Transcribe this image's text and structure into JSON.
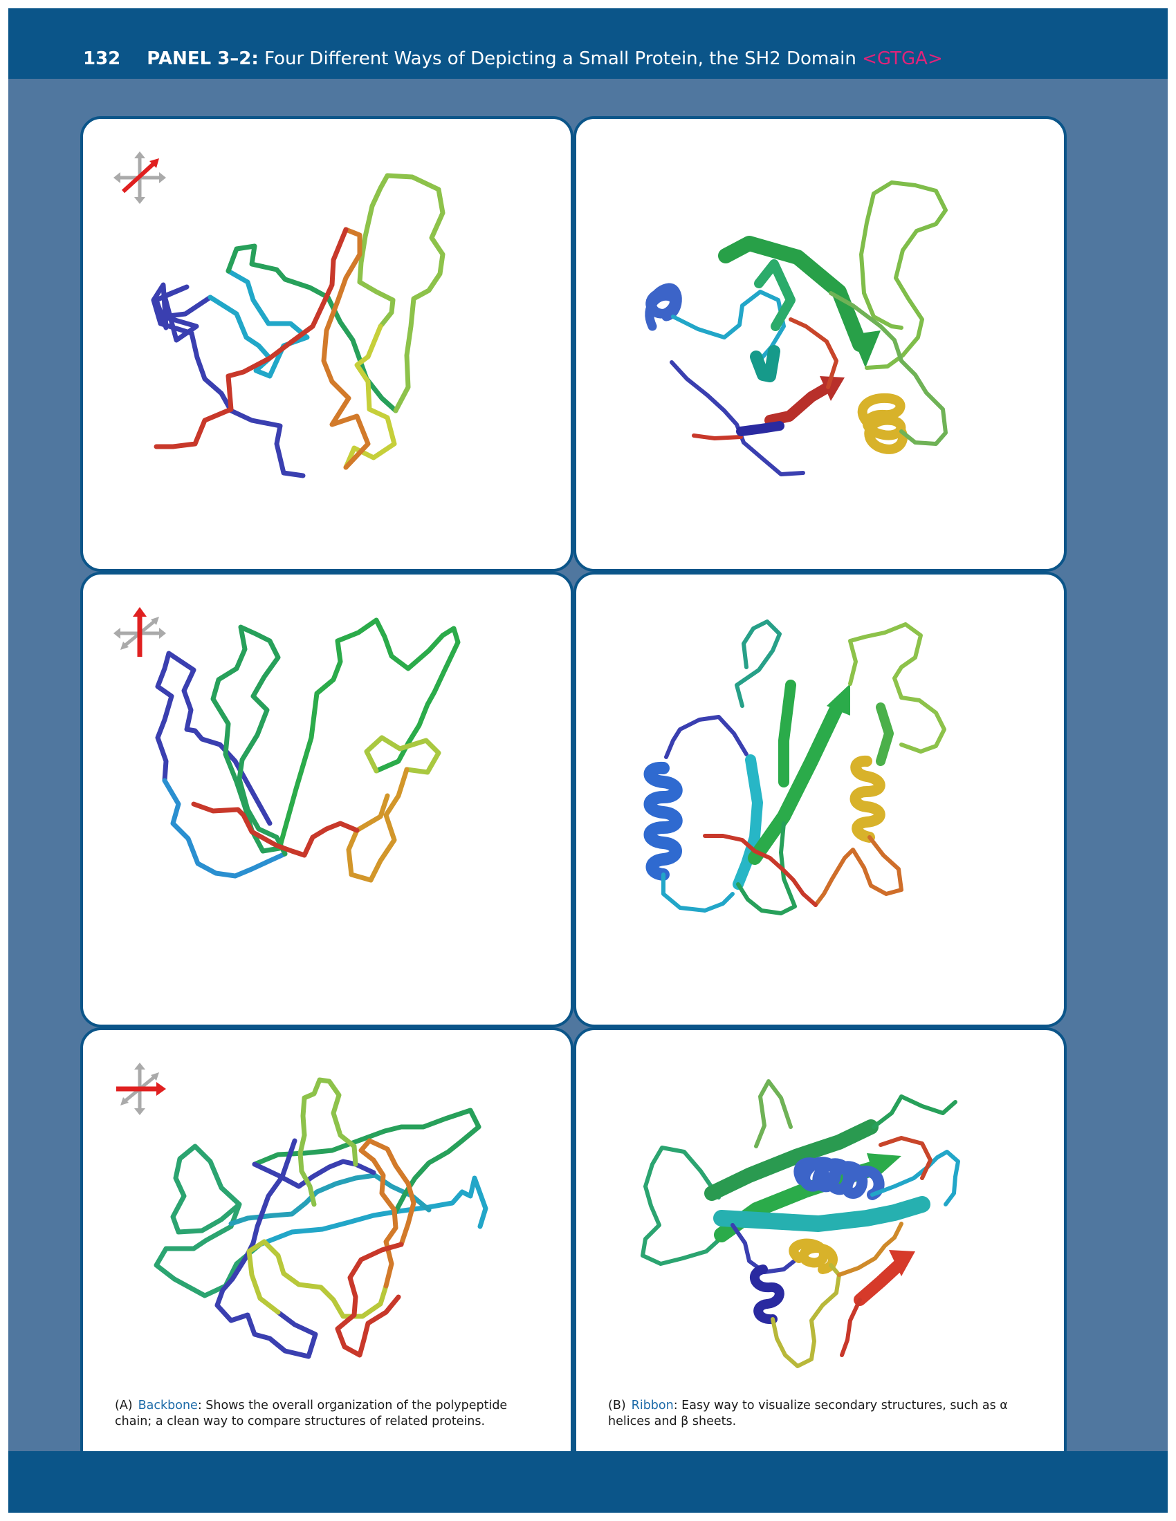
{
  "header": {
    "page_number": "132",
    "panel_label": "PANEL 3–2:",
    "title": "Four Different Ways of Depicting a Small Protein, the SH2 Domain",
    "tag": "<GTGA>"
  },
  "colors": {
    "page_background": "#50779f",
    "band": "#0b5589",
    "panel_border": "#0b5589",
    "tag": "#e0237a",
    "caption_term": "#1c6aa8"
  },
  "orientation_icons": [
    {
      "row": 1,
      "highlighted_axis": "diagonal",
      "name": "axes-icon-diagonal"
    },
    {
      "row": 2,
      "highlighted_axis": "vertical",
      "name": "axes-icon-vertical"
    },
    {
      "row": 3,
      "highlighted_axis": "horizontal",
      "name": "axes-icon-horizontal"
    }
  ],
  "captions": {
    "backbone": {
      "letter": "(A)",
      "term": "Backbone",
      "text": ": Shows the overall organization of the polypeptide chain; a clean way to compare structures of related proteins."
    },
    "ribbon": {
      "letter": "(B)",
      "term": "Ribbon",
      "text": ": Easy way to visualize secondary structures, such as α helices and β sheets."
    }
  }
}
